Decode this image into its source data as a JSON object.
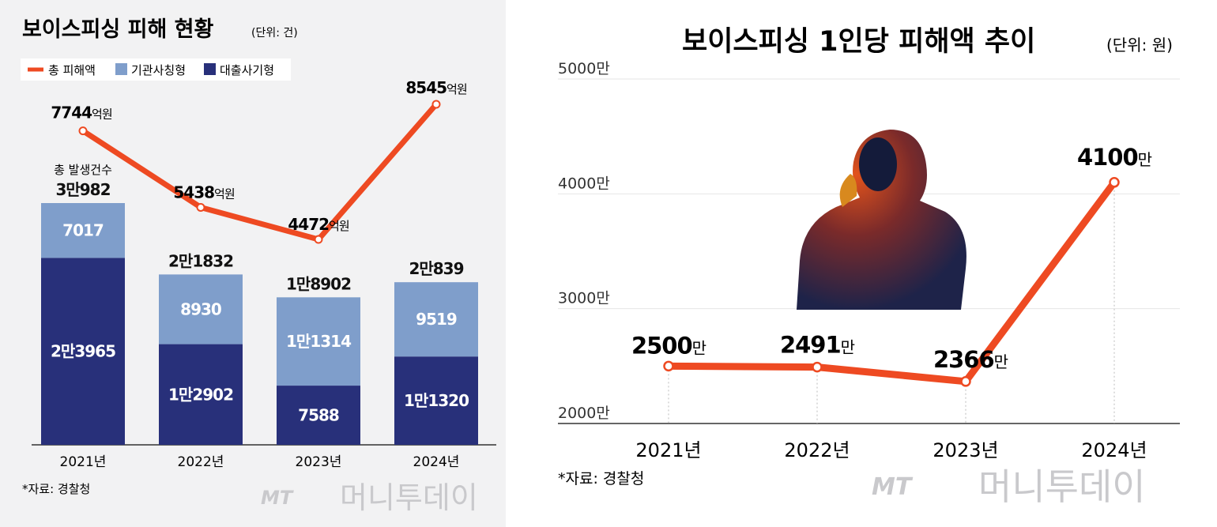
{
  "left": {
    "title": "보이스피싱 피해 현황",
    "unit": "(단위: 건)",
    "legend": [
      {
        "label": "총 피해액",
        "color": "#ee4a22"
      },
      {
        "label": "기관사칭형",
        "color": "#7f9ecb"
      },
      {
        "label": "대출사기형",
        "color": "#28307a"
      }
    ],
    "total_caption": "총 발생건수",
    "source": "*자료: 경찰청",
    "watermark": "머니투데이",
    "watermark_mt": "MT"
  },
  "right": {
    "title": "보이스피싱 1인당 피해액 추이",
    "unit": "(단위: 원)",
    "source": "*자료: 경찰청",
    "watermark": "머니투데이",
    "watermark_mt": "MT"
  },
  "chart_data": [
    {
      "type": "bar",
      "title": "보이스피싱 피해 현황",
      "unit": "건",
      "stacked": true,
      "categories": [
        "2021년",
        "2022년",
        "2023년",
        "2024년"
      ],
      "series": [
        {
          "name": "대출사기형",
          "values": [
            23965,
            12902,
            7588,
            11320
          ],
          "labels": [
            "2만3965",
            "1만2902",
            "7588",
            "1만1320"
          ],
          "color": "#28307a"
        },
        {
          "name": "기관사칭형",
          "values": [
            7017,
            8930,
            11314,
            9519
          ],
          "labels": [
            "7017",
            "8930",
            "1만1314",
            "9519"
          ],
          "color": "#7f9ecb"
        }
      ],
      "totals": {
        "values": [
          30982,
          21832,
          18902,
          20839
        ],
        "labels": [
          "3만982",
          "2만1832",
          "1만8902",
          "2만839"
        ]
      },
      "line_series": {
        "name": "총 피해액",
        "values": [
          7744,
          5438,
          4472,
          8545
        ],
        "unit": "억원",
        "color": "#ee4a22"
      },
      "legend_position": "top-left",
      "grid": false
    },
    {
      "type": "line",
      "title": "보이스피싱 1인당 피해액 추이",
      "unit": "원",
      "x": [
        "2021년",
        "2022년",
        "2023년",
        "2024년"
      ],
      "series": [
        {
          "name": "1인당 피해액",
          "values": [
            25000000,
            24910000,
            23660000,
            41000000
          ],
          "labels": [
            "2500",
            "2491",
            "2366",
            "4100"
          ],
          "label_unit": "만",
          "color": "#ee4a22"
        }
      ],
      "ylim": [
        20000000,
        50000000
      ],
      "yticks": [
        20000000,
        30000000,
        40000000,
        50000000
      ],
      "ytick_labels": [
        "2000만",
        "3000만",
        "4000만",
        "5000만"
      ],
      "grid": true
    }
  ]
}
